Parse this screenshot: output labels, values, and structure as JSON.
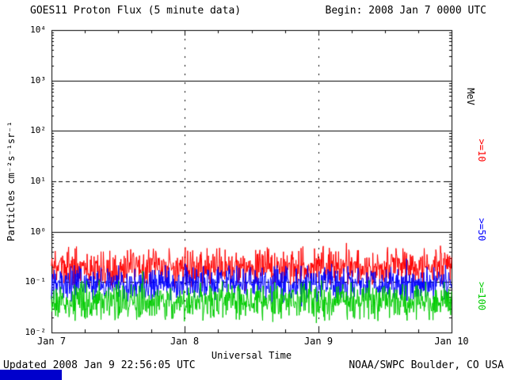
{
  "chart_data": {
    "type": "line",
    "title": "GOES11 Proton Flux (5 minute data)",
    "begin_label": "Begin: 2008 Jan 7 0000 UTC",
    "xlabel": "Universal Time",
    "ylabel": "Particles cm⁻²s⁻¹sr⁻¹",
    "right_axis_label": "MeV",
    "x_ticks": [
      "Jan 7",
      "Jan 8",
      "Jan 9",
      "Jan 10"
    ],
    "y_tick_labels": [
      "10⁴",
      "10³",
      "10²",
      "10¹",
      "10⁰",
      "10⁻¹",
      "10⁻²"
    ],
    "ylog_range": [
      -2,
      4
    ],
    "days": 3,
    "points_per_day": 288,
    "grid": {
      "solid_decades": [
        3,
        2,
        0
      ],
      "dashed_decades": [
        1,
        -1
      ],
      "vertical_dashed_days": [
        1,
        2
      ]
    },
    "series": [
      {
        "name": ">=10",
        "color": "#ff0000",
        "baseline_flux": 0.2,
        "log_amplitude": 0.22,
        "seed": 11
      },
      {
        "name": ">=50",
        "color": "#0000ff",
        "baseline_flux": 0.095,
        "log_amplitude": 0.2,
        "seed": 52
      },
      {
        "name": ">=100",
        "color": "#00cc00",
        "baseline_flux": 0.042,
        "log_amplitude": 0.22,
        "seed": 103
      }
    ],
    "axis_color": "#000000",
    "background": "#ffffff"
  },
  "footer": {
    "updated": "Updated 2008 Jan  9 22:56:05 UTC",
    "source": "NOAA/SWPC Boulder, CO USA",
    "corner_bar_color": "#0000cc"
  }
}
